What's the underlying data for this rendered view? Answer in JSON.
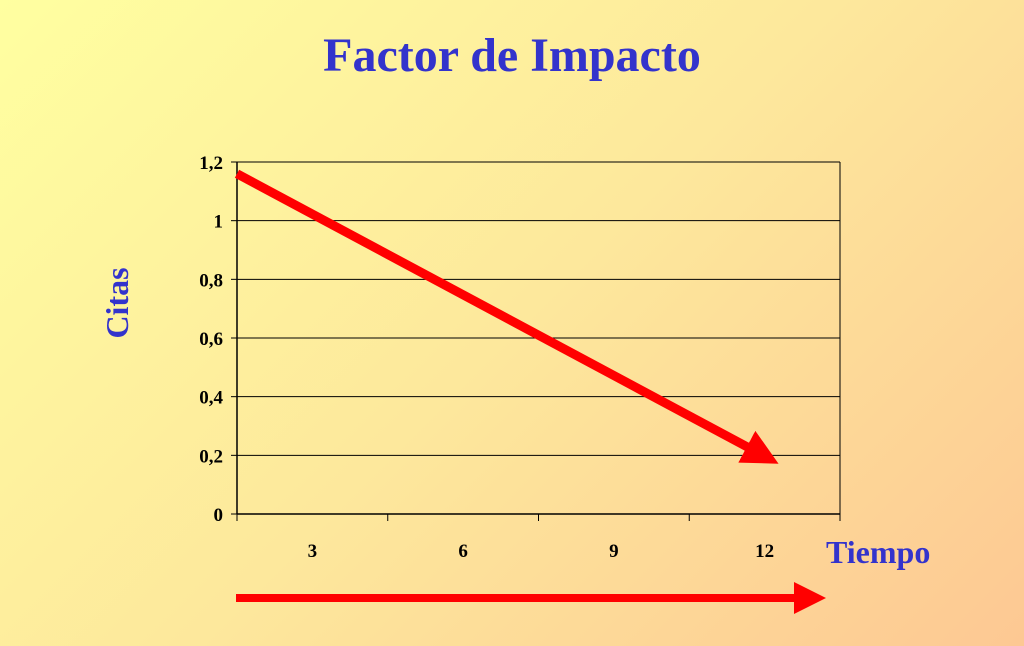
{
  "slide": {
    "title": "Factor de Impacto"
  },
  "chart_data": {
    "type": "line",
    "title": "Factor de Impacto",
    "xlabel": "Tiempo",
    "ylabel": "Citas",
    "categories": [
      "3",
      "6",
      "9",
      "12"
    ],
    "y_ticks": [
      "0",
      "0,2",
      "0,4",
      "0,6",
      "0,8",
      "1",
      "1,2"
    ],
    "ylim": [
      0,
      1.2
    ],
    "grid": true,
    "series": [
      {
        "points": [
          [
            1.5,
            1.16
          ],
          [
            12.2,
            0.18
          ]
        ],
        "style": "arrow"
      }
    ],
    "time_arrow": true,
    "colors": {
      "trend": "#ff0000",
      "title": "#3333cc",
      "grid": "#000000"
    }
  }
}
